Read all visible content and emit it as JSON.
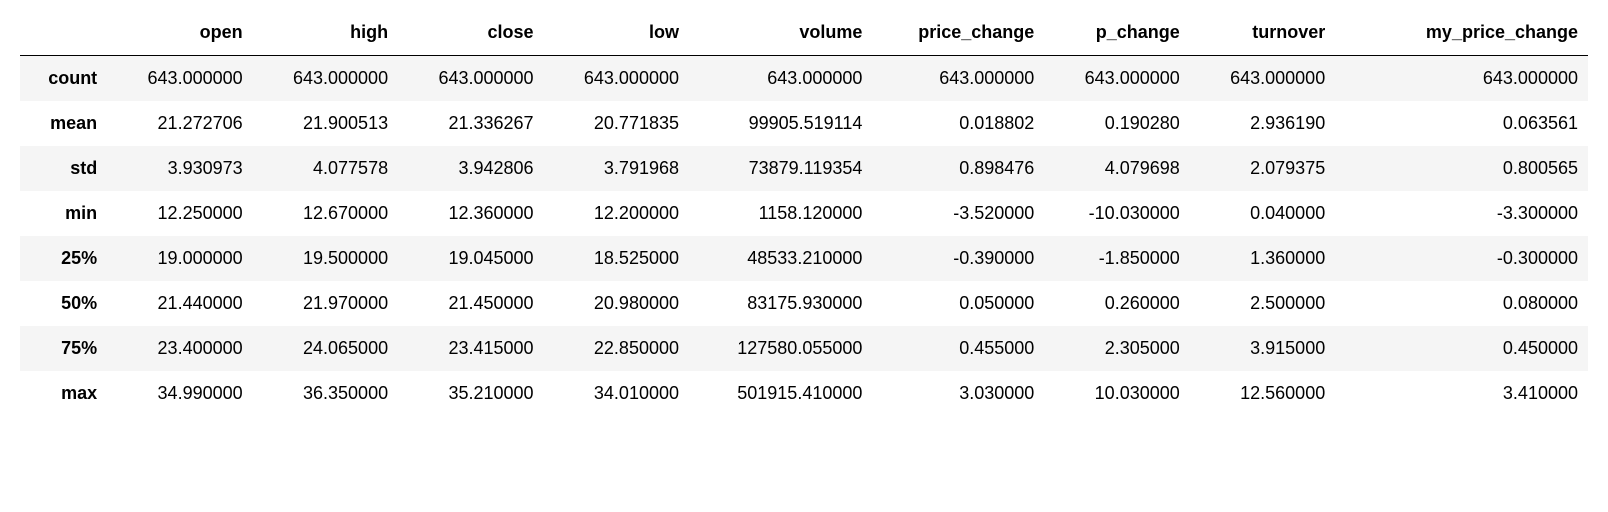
{
  "table": {
    "type": "table",
    "background_color": "#ffffff",
    "stripe_color": "#f5f5f5",
    "border_color": "#000000",
    "font_family": "Helvetica",
    "header_fontweight": 700,
    "index_fontweight": 700,
    "cell_fontsize": 18,
    "text_align": "right",
    "columns": [
      "open",
      "high",
      "close",
      "low",
      "volume",
      "price_change",
      "p_change",
      "turnover",
      "my_price_change"
    ],
    "index": [
      "count",
      "mean",
      "std",
      "min",
      "25%",
      "50%",
      "75%",
      "max"
    ],
    "rows": [
      [
        "643.000000",
        "643.000000",
        "643.000000",
        "643.000000",
        "643.000000",
        "643.000000",
        "643.000000",
        "643.000000",
        "643.000000"
      ],
      [
        "21.272706",
        "21.900513",
        "21.336267",
        "20.771835",
        "99905.519114",
        "0.018802",
        "0.190280",
        "2.936190",
        "0.063561"
      ],
      [
        "3.930973",
        "4.077578",
        "3.942806",
        "3.791968",
        "73879.119354",
        "0.898476",
        "4.079698",
        "2.079375",
        "0.800565"
      ],
      [
        "12.250000",
        "12.670000",
        "12.360000",
        "12.200000",
        "1158.120000",
        "-3.520000",
        "-10.030000",
        "0.040000",
        "-3.300000"
      ],
      [
        "19.000000",
        "19.500000",
        "19.045000",
        "18.525000",
        "48533.210000",
        "-0.390000",
        "-1.850000",
        "1.360000",
        "-0.300000"
      ],
      [
        "21.440000",
        "21.970000",
        "21.450000",
        "20.980000",
        "83175.930000",
        "0.050000",
        "0.260000",
        "2.500000",
        "0.080000"
      ],
      [
        "23.400000",
        "24.065000",
        "23.415000",
        "22.850000",
        "127580.055000",
        "0.455000",
        "2.305000",
        "3.915000",
        "0.450000"
      ],
      [
        "34.990000",
        "36.350000",
        "35.210000",
        "34.010000",
        "501915.410000",
        "3.030000",
        "10.030000",
        "12.560000",
        "3.410000"
      ]
    ],
    "wide_columns": [
      8
    ]
  }
}
